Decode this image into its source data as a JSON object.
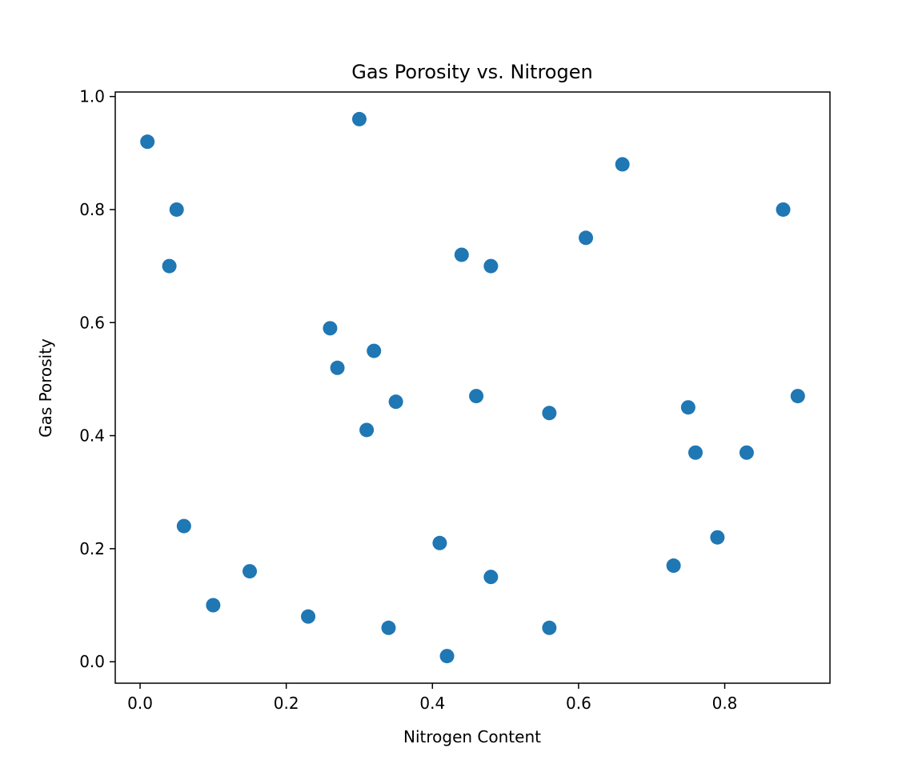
{
  "chart_data": {
    "type": "scatter",
    "title": "Gas Porosity vs. Nitrogen",
    "xlabel": "Nitrogen Content",
    "ylabel": "Gas Porosity",
    "xlim": [
      -0.034,
      0.944
    ],
    "ylim": [
      -0.038,
      1.008
    ],
    "xticks": [
      0.0,
      0.2,
      0.4,
      0.6,
      0.8
    ],
    "yticks": [
      0.0,
      0.2,
      0.4,
      0.6,
      0.8,
      1.0
    ],
    "xtick_labels": [
      "0.0",
      "0.2",
      "0.4",
      "0.6",
      "0.8"
    ],
    "ytick_labels": [
      "0.0",
      "0.2",
      "0.4",
      "0.6",
      "0.8",
      "1.0"
    ],
    "grid": false,
    "marker_color": "#1f77b4",
    "points": [
      {
        "x": 0.01,
        "y": 0.92
      },
      {
        "x": 0.04,
        "y": 0.7
      },
      {
        "x": 0.05,
        "y": 0.8
      },
      {
        "x": 0.06,
        "y": 0.24
      },
      {
        "x": 0.1,
        "y": 0.1
      },
      {
        "x": 0.15,
        "y": 0.16
      },
      {
        "x": 0.23,
        "y": 0.08
      },
      {
        "x": 0.26,
        "y": 0.59
      },
      {
        "x": 0.27,
        "y": 0.52
      },
      {
        "x": 0.3,
        "y": 0.96
      },
      {
        "x": 0.31,
        "y": 0.41
      },
      {
        "x": 0.32,
        "y": 0.55
      },
      {
        "x": 0.34,
        "y": 0.06
      },
      {
        "x": 0.35,
        "y": 0.46
      },
      {
        "x": 0.41,
        "y": 0.21
      },
      {
        "x": 0.42,
        "y": 0.01
      },
      {
        "x": 0.44,
        "y": 0.72
      },
      {
        "x": 0.46,
        "y": 0.47
      },
      {
        "x": 0.48,
        "y": 0.7
      },
      {
        "x": 0.48,
        "y": 0.15
      },
      {
        "x": 0.56,
        "y": 0.44
      },
      {
        "x": 0.56,
        "y": 0.06
      },
      {
        "x": 0.61,
        "y": 0.75
      },
      {
        "x": 0.66,
        "y": 0.88
      },
      {
        "x": 0.73,
        "y": 0.17
      },
      {
        "x": 0.75,
        "y": 0.45
      },
      {
        "x": 0.76,
        "y": 0.37
      },
      {
        "x": 0.79,
        "y": 0.22
      },
      {
        "x": 0.83,
        "y": 0.37
      },
      {
        "x": 0.88,
        "y": 0.8
      },
      {
        "x": 0.9,
        "y": 0.47
      }
    ]
  }
}
